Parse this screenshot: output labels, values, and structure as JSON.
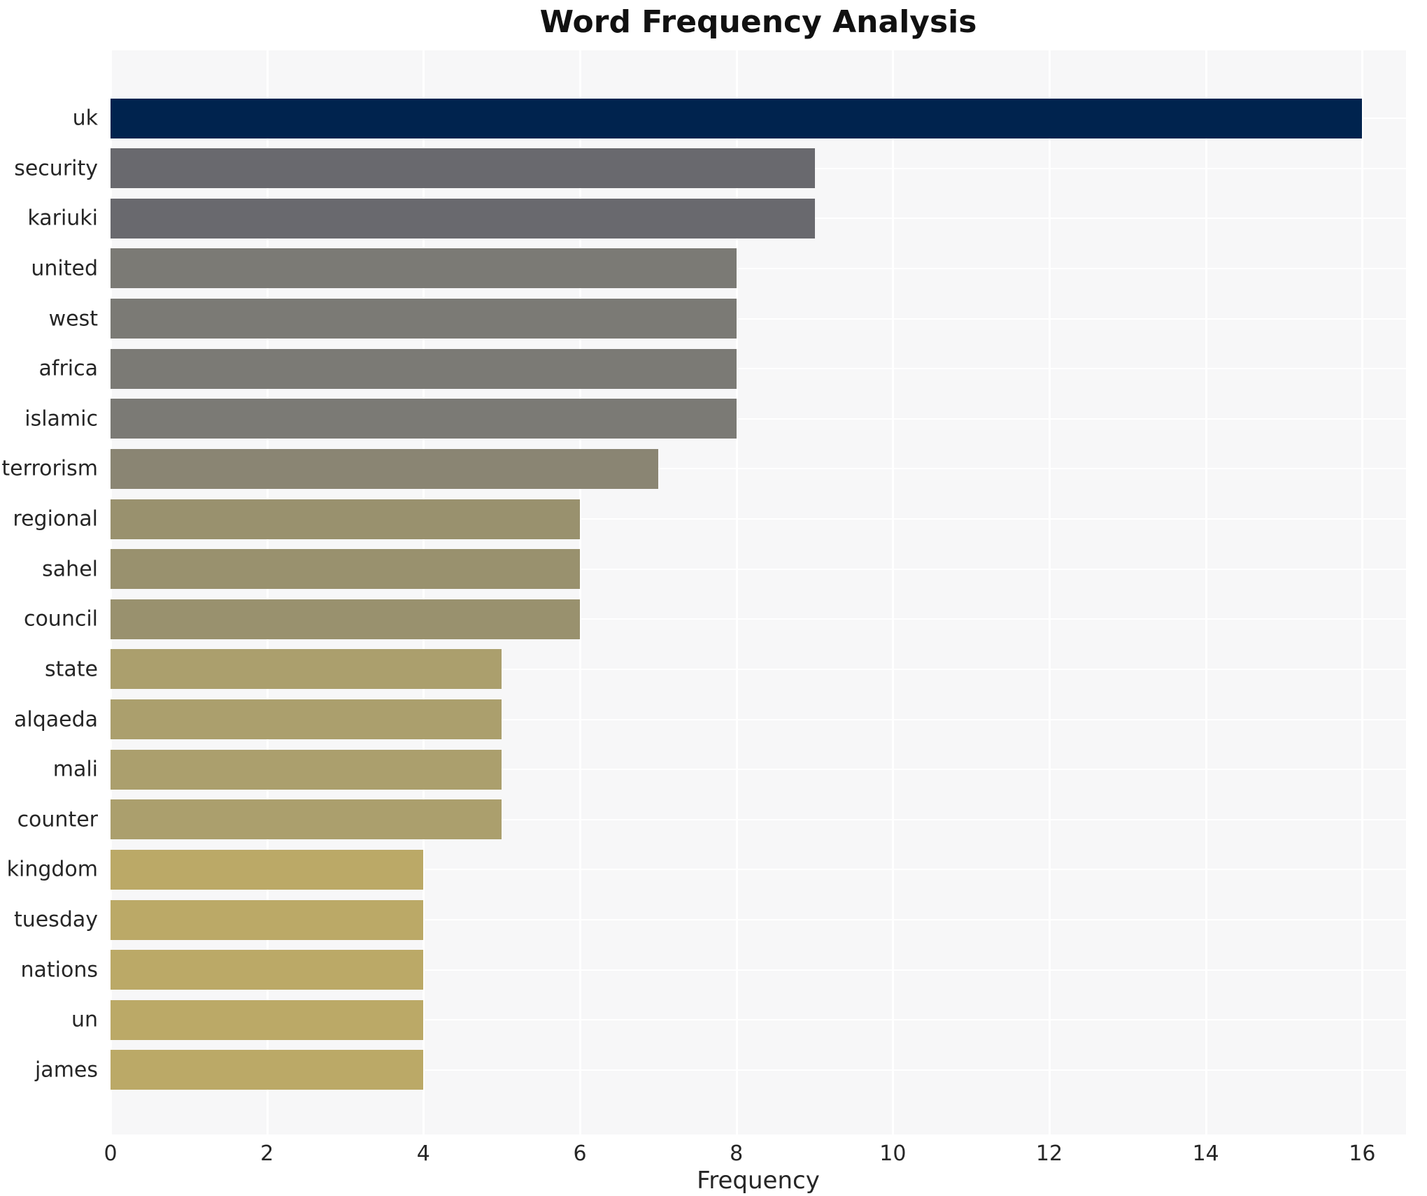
{
  "title": "Word Frequency Analysis",
  "xlabel": "Frequency",
  "chart_data": {
    "type": "bar",
    "orientation": "horizontal",
    "title": "Word Frequency Analysis",
    "xlabel": "Frequency",
    "ylabel": "",
    "grid": true,
    "legend": false,
    "plot_background": "#f7f7f8",
    "gridline_color": "#ffffff",
    "xlim": [
      0,
      16.56
    ],
    "xticks": [
      0,
      2,
      4,
      6,
      8,
      10,
      12,
      14,
      16
    ],
    "categories": [
      "uk",
      "security",
      "kariuki",
      "united",
      "west",
      "africa",
      "islamic",
      "terrorism",
      "regional",
      "sahel",
      "council",
      "state",
      "alqaeda",
      "mali",
      "counter",
      "kingdom",
      "tuesday",
      "nations",
      "un",
      "james"
    ],
    "values": [
      16,
      9,
      9,
      8,
      8,
      8,
      8,
      7,
      6,
      6,
      6,
      5,
      5,
      5,
      5,
      4,
      4,
      4,
      4,
      4
    ],
    "bar_colors": [
      "#00234e",
      "#69696e",
      "#69696e",
      "#7b7a75",
      "#7b7a75",
      "#7b7a75",
      "#7b7a75",
      "#8a8573",
      "#99916e",
      "#99916e",
      "#99916e",
      "#ab9f6d",
      "#ab9f6d",
      "#ab9f6d",
      "#ab9f6d",
      "#bba967",
      "#bba967",
      "#bba967",
      "#bba967",
      "#bba967"
    ]
  }
}
